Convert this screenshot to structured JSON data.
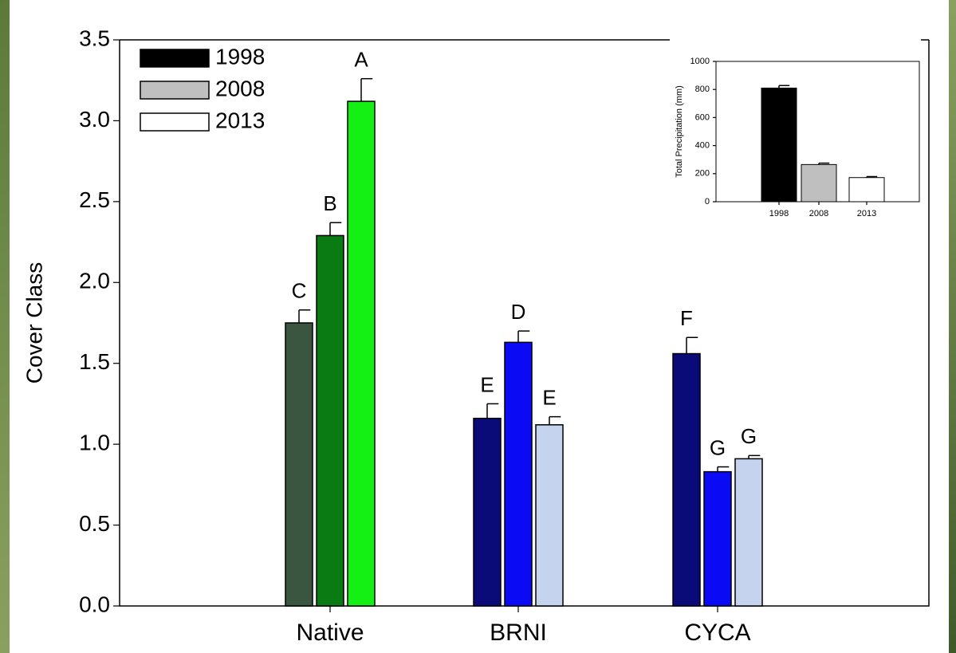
{
  "chart_data": [
    {
      "type": "bar",
      "ylabel": "Cover Class",
      "categories": [
        "Native",
        "BRNI",
        "CYCA"
      ],
      "series": [
        {
          "name": "1998",
          "color": "#000000",
          "colors": [
            "#3b5640",
            "#0a0a78",
            "#0a0a78"
          ],
          "values": [
            1.75,
            1.16,
            1.56
          ],
          "errors": [
            0.08,
            0.09,
            0.1
          ],
          "letters": [
            "C",
            "E",
            "F"
          ]
        },
        {
          "name": "2008",
          "color": "#bfbfbf",
          "colors": [
            "#0a7a12",
            "#0a0af5",
            "#0a0af5"
          ],
          "values": [
            2.29,
            1.63,
            0.83
          ],
          "errors": [
            0.08,
            0.07,
            0.03
          ],
          "letters": [
            "B",
            "D",
            "G"
          ]
        },
        {
          "name": "2013",
          "color": "#ffffff",
          "colors": [
            "#14f014",
            "#c5d3ee",
            "#c5d3ee"
          ],
          "values": [
            3.12,
            1.12,
            0.91
          ],
          "errors": [
            0.14,
            0.05,
            0.02
          ],
          "letters": [
            "A",
            "E",
            "G"
          ]
        }
      ],
      "ylim": [
        0,
        3.5
      ],
      "yticks": [
        {
          "value": 0,
          "label": "0.0"
        },
        0.5,
        {
          "value": 1,
          "label": "1.0"
        },
        1.5,
        {
          "value": 2,
          "label": "2.0"
        },
        2.5,
        {
          "value": 3,
          "label": "3.0"
        },
        3.5
      ],
      "legend": "upper left"
    },
    {
      "type": "bar",
      "ylabel": "Total Precipitation (mm)",
      "categories": [
        "1998",
        "2008",
        "2013"
      ],
      "values": [
        810,
        265,
        172
      ],
      "errors": [
        18,
        10,
        7
      ],
      "colors": [
        "#000000",
        "#bfbfbf",
        "#ffffff"
      ],
      "ylim": [
        0,
        1000
      ],
      "yticks": [
        0,
        200,
        400,
        600,
        800,
        1000
      ]
    }
  ]
}
